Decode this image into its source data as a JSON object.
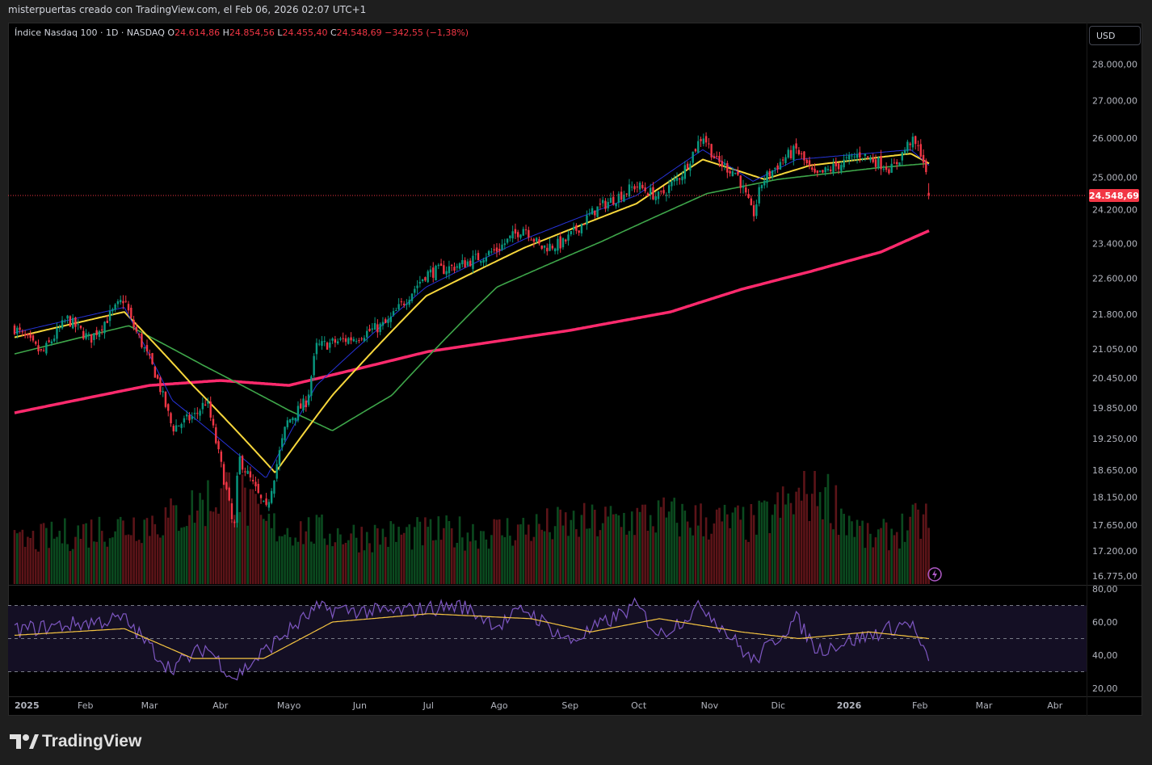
{
  "topbar": {
    "caption": "misterpuertas creado con TradingView.com, el Feb 06, 2026 02:07 UTC+1"
  },
  "header": {
    "symbol": "Índice Nasdaq 100 · 1D · NASDAQ",
    "o_label": "O",
    "o_value": "24.614,86",
    "h_label": "H",
    "h_value": "24.854,56",
    "l_label": "L",
    "l_value": "24.455,40",
    "c_label": "C",
    "c_value": "24.548,69",
    "change": "−342,55 (−1,38%)"
  },
  "currency_button": "USD",
  "brand": "TradingView",
  "colors": {
    "up": "#089981",
    "down": "#f23645",
    "vol_up": "#0b4a1f",
    "vol_down": "#5c1418",
    "ema20": "#f7d73c",
    "ema10": "#2633d8",
    "ema50": "#3ea64a",
    "ema200": "#ff2a6d",
    "rsi": "#7e57c2",
    "rsi_ma": "#f5c441",
    "price_label_bg": "#f23645"
  },
  "chart_data": {
    "type": "candlestick",
    "price_axis": {
      "ticks": [
        28000,
        27000,
        26000,
        25000,
        24200,
        23400,
        22600,
        21800,
        21050,
        20450,
        19850,
        19250,
        18650,
        18150,
        17650,
        17200,
        16775
      ],
      "tick_labels": [
        "28.000,00",
        "27.000,00",
        "26.000,00",
        "25.000,00",
        "24.200,00",
        "23.400,00",
        "22.600,00",
        "21.800,00",
        "21.050,00",
        "20.450,00",
        "19.850,00",
        "19.250,00",
        "18.650,00",
        "18.150,00",
        "17.650,00",
        "17.200,00",
        "16.775,00"
      ],
      "scale": "log"
    },
    "time_axis": {
      "labels": [
        "2025",
        "Feb",
        "Mar",
        "Abr",
        "Mayo",
        "Jun",
        "Jul",
        "Ago",
        "Sep",
        "Oct",
        "Nov",
        "Dic",
        "2026",
        "Feb",
        "Mar",
        "Abr"
      ],
      "months": [
        "2025-01",
        "2025-02",
        "2025-03",
        "2025-04",
        "2025-05",
        "2025-06",
        "2025-07",
        "2025-08",
        "2025-09",
        "2025-10",
        "2025-11",
        "2025-12",
        "2026-01",
        "2026-02",
        "2026-03",
        "2026-04"
      ]
    },
    "last_price": 24548.69,
    "last_price_label": "24.548,69",
    "close_path": [
      [
        "2025-01-01",
        21500
      ],
      [
        "2025-01-13",
        20950
      ],
      [
        "2025-01-24",
        21700
      ],
      [
        "2025-02-03",
        21250
      ],
      [
        "2025-02-18",
        22150
      ],
      [
        "2025-02-21",
        21650
      ],
      [
        "2025-03-04",
        20500
      ],
      [
        "2025-03-11",
        19450
      ],
      [
        "2025-03-21",
        19700
      ],
      [
        "2025-03-26",
        20000
      ],
      [
        "2025-04-04",
        18200
      ],
      [
        "2025-04-07",
        17500
      ],
      [
        "2025-04-09",
        18900
      ],
      [
        "2025-04-21",
        17900
      ],
      [
        "2025-04-30",
        19550
      ],
      [
        "2025-05-09",
        20000
      ],
      [
        "2025-05-13",
        21100
      ],
      [
        "2025-05-30",
        21300
      ],
      [
        "2025-06-13",
        21600
      ],
      [
        "2025-06-30",
        22700
      ],
      [
        "2025-07-15",
        22900
      ],
      [
        "2025-07-31",
        23250
      ],
      [
        "2025-08-12",
        23800
      ],
      [
        "2025-08-19",
        23300
      ],
      [
        "2025-08-29",
        23400
      ],
      [
        "2025-09-12",
        24200
      ],
      [
        "2025-09-30",
        24800
      ],
      [
        "2025-10-10",
        24500
      ],
      [
        "2025-10-20",
        25100
      ],
      [
        "2025-10-29",
        26100
      ],
      [
        "2025-11-04",
        25400
      ],
      [
        "2025-11-13",
        25100
      ],
      [
        "2025-11-20",
        24050
      ],
      [
        "2025-11-24",
        24900
      ],
      [
        "2025-12-04",
        25500
      ],
      [
        "2025-12-09",
        25700
      ],
      [
        "2025-12-17",
        25000
      ],
      [
        "2026-01-06",
        25600
      ],
      [
        "2026-01-20",
        25200
      ],
      [
        "2026-01-28",
        25950
      ],
      [
        "2026-02-02",
        25600
      ],
      [
        "2026-02-05",
        24548.69
      ]
    ],
    "indicators": [
      {
        "name": "EMA 10",
        "path": [
          [
            "2025-01-01",
            21400
          ],
          [
            "2025-02-18",
            21950
          ],
          [
            "2025-03-11",
            20000
          ],
          [
            "2025-04-21",
            18500
          ],
          [
            "2025-05-13",
            20300
          ],
          [
            "2025-06-30",
            22400
          ],
          [
            "2025-08-12",
            23500
          ],
          [
            "2025-09-30",
            24550
          ],
          [
            "2025-10-29",
            25700
          ],
          [
            "2025-11-20",
            24900
          ],
          [
            "2025-12-09",
            25450
          ],
          [
            "2026-01-28",
            25700
          ],
          [
            "2026-02-05",
            25300
          ]
        ]
      },
      {
        "name": "EMA 20",
        "path": [
          [
            "2025-01-01",
            21300
          ],
          [
            "2025-02-18",
            21850
          ],
          [
            "2025-03-20",
            20300
          ],
          [
            "2025-04-25",
            18600
          ],
          [
            "2025-05-20",
            20100
          ],
          [
            "2025-06-30",
            22200
          ],
          [
            "2025-08-12",
            23300
          ],
          [
            "2025-09-30",
            24350
          ],
          [
            "2025-10-29",
            25450
          ],
          [
            "2025-11-25",
            24950
          ],
          [
            "2025-12-15",
            25300
          ],
          [
            "2026-01-28",
            25600
          ],
          [
            "2026-02-05",
            25350
          ]
        ]
      },
      {
        "name": "EMA 50",
        "path": [
          [
            "2025-01-01",
            20950
          ],
          [
            "2025-02-20",
            21550
          ],
          [
            "2025-03-25",
            20700
          ],
          [
            "2025-05-01",
            19800
          ],
          [
            "2025-05-20",
            19400
          ],
          [
            "2025-06-15",
            20100
          ],
          [
            "2025-07-31",
            22400
          ],
          [
            "2025-09-15",
            23450
          ],
          [
            "2025-10-31",
            24600
          ],
          [
            "2025-12-01",
            24950
          ],
          [
            "2026-01-15",
            25250
          ],
          [
            "2026-02-05",
            25350
          ]
        ]
      },
      {
        "name": "EMA 200",
        "path": [
          [
            "2025-01-01",
            19750
          ],
          [
            "2025-03-01",
            20300
          ],
          [
            "2025-04-01",
            20400
          ],
          [
            "2025-05-01",
            20300
          ],
          [
            "2025-06-01",
            20650
          ],
          [
            "2025-07-01",
            21000
          ],
          [
            "2025-09-01",
            21450
          ],
          [
            "2025-10-15",
            21850
          ],
          [
            "2025-11-15",
            22350
          ],
          [
            "2025-12-15",
            22750
          ],
          [
            "2026-01-15",
            23200
          ],
          [
            "2026-02-05",
            23700
          ]
        ]
      }
    ],
    "volume": {
      "path": [
        [
          "2025-01-01",
          0.42
        ],
        [
          "2025-02-01",
          0.55
        ],
        [
          "2025-03-10",
          0.68
        ],
        [
          "2025-04-07",
          1.0
        ],
        [
          "2025-04-20",
          0.6
        ],
        [
          "2025-06-01",
          0.5
        ],
        [
          "2025-08-01",
          0.55
        ],
        [
          "2025-10-10",
          0.7
        ],
        [
          "2025-11-20",
          0.62
        ],
        [
          "2025-12-19",
          1.0
        ],
        [
          "2026-01-10",
          0.45
        ],
        [
          "2026-02-05",
          0.68
        ]
      ]
    },
    "rsi_pane": {
      "ticks": [
        80,
        60,
        40,
        20
      ],
      "tick_labels": [
        "80,00",
        "60,00",
        "40,00",
        "20,00"
      ],
      "bands": [
        70,
        50,
        30
      ],
      "rsi": [
        [
          "2025-01-01",
          55
        ],
        [
          "2025-02-18",
          62
        ],
        [
          "2025-03-10",
          32
        ],
        [
          "2025-03-26",
          45
        ],
        [
          "2025-04-07",
          26
        ],
        [
          "2025-04-25",
          48
        ],
        [
          "2025-05-13",
          68
        ],
        [
          "2025-06-15",
          66
        ],
        [
          "2025-07-15",
          70
        ],
        [
          "2025-08-01",
          58
        ],
        [
          "2025-08-12",
          68
        ],
        [
          "2025-09-01",
          48
        ],
        [
          "2025-09-30",
          70
        ],
        [
          "2025-10-10",
          52
        ],
        [
          "2025-10-29",
          70
        ],
        [
          "2025-11-20",
          36
        ],
        [
          "2025-12-09",
          62
        ],
        [
          "2025-12-18",
          43
        ],
        [
          "2026-01-10",
          52
        ],
        [
          "2026-01-28",
          60
        ],
        [
          "2026-02-05",
          34
        ]
      ],
      "rsi_ma": [
        [
          "2025-01-01",
          52
        ],
        [
          "2025-02-18",
          56
        ],
        [
          "2025-03-20",
          38
        ],
        [
          "2025-04-20",
          38
        ],
        [
          "2025-05-20",
          60
        ],
        [
          "2025-07-01",
          65
        ],
        [
          "2025-08-15",
          62
        ],
        [
          "2025-09-10",
          54
        ],
        [
          "2025-10-10",
          62
        ],
        [
          "2025-11-15",
          54
        ],
        [
          "2025-12-10",
          50
        ],
        [
          "2026-01-10",
          54
        ],
        [
          "2026-02-05",
          50
        ]
      ]
    }
  }
}
